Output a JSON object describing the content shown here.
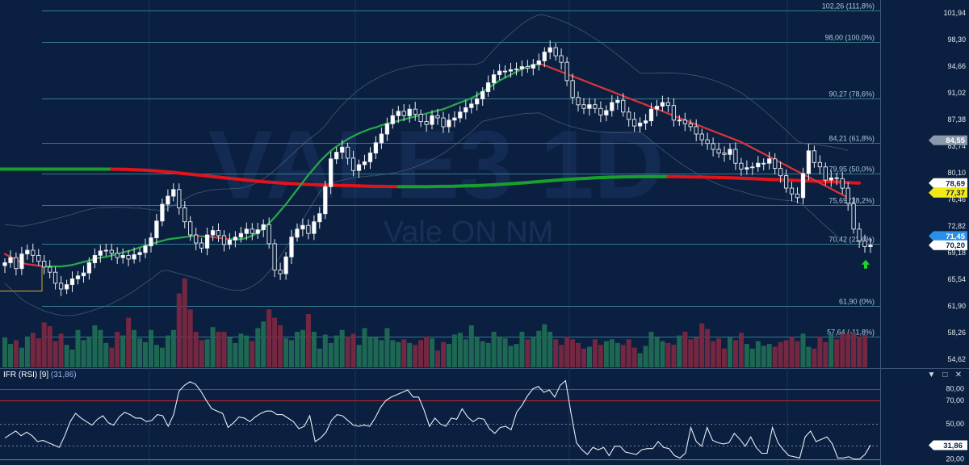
{
  "chart_data": [
    {
      "type": "candlestick",
      "title": "VALE3 1D",
      "subtitle": "Vale ON NM",
      "ylim": [
        53.5,
        103.5
      ],
      "y_ticks": [
        "101,94",
        "98,30",
        "94,66",
        "91,02",
        "87,38",
        "83,74",
        "80,10",
        "76,46",
        "72,82",
        "69,18",
        "65,54",
        "61,90",
        "58,26",
        "54,62"
      ],
      "y_tick_values": [
        101.94,
        98.3,
        94.66,
        91.02,
        87.38,
        83.74,
        80.1,
        76.46,
        72.82,
        69.18,
        65.54,
        61.9,
        58.26,
        54.62
      ],
      "fibonacci_levels": [
        {
          "label": "102,26 (111,8%)",
          "value": 102.26
        },
        {
          "label": "98,00 (100,0%)",
          "value": 98.0
        },
        {
          "label": "90,27 (78,6%)",
          "value": 90.27
        },
        {
          "label": "84,21 (61,8%)",
          "value": 84.21
        },
        {
          "label": "79,95 (50,0%)",
          "value": 79.95
        },
        {
          "label": "75,69 (38,2%)",
          "value": 75.69
        },
        {
          "label": "70,42 (23,6%)",
          "value": 70.42
        },
        {
          "label": "61,90 (0%)",
          "value": 61.9
        },
        {
          "label": "57,64 (-11,8%)",
          "value": 57.64
        }
      ],
      "price_badges": [
        {
          "label": "84,55",
          "value": 84.55,
          "color": "#8a98ab"
        },
        {
          "label": "78,69",
          "value": 78.69,
          "color": "#ffffff"
        },
        {
          "label": "77,37",
          "value": 77.37,
          "color": "#f2ea18"
        },
        {
          "label": "71,45",
          "value": 71.45,
          "color": "#2a8fe8"
        },
        {
          "label": "70,20",
          "value": 70.2,
          "color": "#ffffff"
        }
      ],
      "close_series": [
        67.8,
        68.5,
        67.0,
        69.0,
        69.5,
        68.8,
        68.0,
        67.2,
        66.5,
        65.0,
        64.2,
        64.8,
        65.6,
        66.0,
        66.4,
        67.8,
        68.8,
        69.4,
        69.5,
        69.1,
        68.5,
        68.8,
        68.3,
        68.9,
        69.2,
        70.1,
        71.2,
        73.5,
        75.8,
        76.9,
        77.8,
        75.3,
        73.4,
        71.6,
        70.5,
        69.8,
        71.6,
        72.2,
        71.5,
        70.3,
        70.9,
        71.3,
        71.8,
        72.4,
        71.8,
        72.3,
        73.0,
        70.4,
        66.8,
        66.3,
        68.6,
        71.3,
        72.4,
        72.9,
        71.8,
        73.4,
        74.5,
        78.2,
        82.0,
        82.9,
        83.6,
        82.1,
        80.4,
        81.2,
        81.6,
        82.8,
        84.2,
        85.4,
        86.8,
        87.9,
        88.5,
        87.9,
        88.8,
        88.1,
        87.1,
        86.7,
        87.9,
        87.6,
        86.4,
        87.3,
        87.6,
        88.4,
        89.0,
        89.5,
        90.2,
        91.2,
        92.4,
        93.5,
        94.0,
        94.0,
        94.2,
        94.3,
        94.6,
        94.4,
        94.9,
        95.4,
        96.6,
        97.2,
        96.1,
        95.2,
        92.7,
        90.4,
        89.4,
        88.9,
        89.4,
        88.9,
        88.0,
        88.6,
        89.7,
        90.0,
        88.4,
        87.4,
        86.5,
        86.9,
        87.2,
        88.8,
        89.2,
        89.7,
        89.3,
        87.3,
        87.3,
        86.8,
        86.4,
        85.4,
        84.6,
        84.1,
        83.3,
        82.8,
        82.6,
        83.3,
        81.4,
        80.6,
        80.8,
        80.9,
        81.4,
        81.4,
        82.0,
        80.7,
        79.7,
        78.0,
        77.2,
        76.7,
        80.0,
        83.1,
        81.5,
        80.9,
        79.1,
        79.4,
        79.3,
        78.0,
        75.9,
        72.4,
        70.8,
        70.0,
        70.2
      ],
      "sma_fast": [
        69.0,
        68.6,
        68.2,
        67.8,
        67.6,
        67.5,
        67.4,
        67.3,
        67.3,
        67.3,
        67.3,
        67.4,
        67.5,
        67.7,
        67.9,
        68.1,
        68.3,
        68.5,
        68.6,
        68.8,
        69.0,
        69.2,
        69.4,
        69.6,
        69.9,
        70.1,
        70.3,
        70.6,
        70.8,
        71.0,
        71.1,
        71.2,
        71.3,
        71.4,
        71.5,
        71.4,
        71.4,
        71.3,
        71.2,
        71.1,
        71.0,
        71.0,
        71.0,
        71.2,
        71.5,
        71.9,
        72.5,
        73.2,
        74.0,
        74.9,
        75.8,
        76.8,
        77.8,
        78.8,
        79.8,
        80.7,
        81.6,
        82.4,
        83.1,
        83.7,
        84.2,
        84.7,
        85.1,
        85.5,
        85.8,
        86.1,
        86.3,
        86.6,
        86.8,
        87.0,
        87.2,
        87.4,
        87.6,
        87.8,
        88.0,
        88.2,
        88.4,
        88.6,
        88.8,
        89.1,
        89.4,
        89.7,
        90.0,
        90.3,
        90.7,
        91.2,
        91.7,
        92.2,
        92.7,
        93.1,
        93.5,
        93.9,
        94.3,
        94.6,
        94.8,
        95.0,
        94.8,
        94.5,
        94.2,
        93.9,
        93.6,
        93.3,
        93.0,
        92.7,
        92.4,
        92.1,
        91.8,
        91.5,
        91.2,
        90.9,
        90.6,
        90.3,
        90.0,
        89.7,
        89.4,
        89.1,
        88.8,
        88.5,
        88.2,
        87.9,
        87.6,
        87.3,
        87.0,
        86.7,
        86.4,
        86.1,
        85.8,
        85.5,
        85.2,
        84.9,
        84.6,
        84.3,
        83.9,
        83.5,
        83.1,
        82.7,
        82.3,
        81.9,
        81.5,
        81.1,
        80.7,
        80.3,
        79.9,
        79.5,
        79.1,
        78.7,
        78.3,
        77.9,
        77.5,
        77.1,
        76.7
      ],
      "sma_slow": [
        80.6,
        80.6,
        80.6,
        80.6,
        80.6,
        80.6,
        80.6,
        80.6,
        80.6,
        80.6,
        80.6,
        80.6,
        80.6,
        80.6,
        80.6,
        80.6,
        80.6,
        80.6,
        80.6,
        80.6,
        80.59,
        80.57,
        80.55,
        80.52,
        80.49,
        80.45,
        80.4,
        80.34,
        80.28,
        80.21,
        80.14,
        80.06,
        79.98,
        79.9,
        79.82,
        79.74,
        79.66,
        79.58,
        79.5,
        79.42,
        79.34,
        79.26,
        79.18,
        79.1,
        79.02,
        78.95,
        78.88,
        78.82,
        78.76,
        78.71,
        78.66,
        78.62,
        78.58,
        78.54,
        78.51,
        78.48,
        78.45,
        78.42,
        78.4,
        78.38,
        78.36,
        78.34,
        78.32,
        78.3,
        78.28,
        78.26,
        78.24,
        78.23,
        78.22,
        78.21,
        78.2,
        78.2,
        78.2,
        78.2,
        78.2,
        78.2,
        78.21,
        78.22,
        78.23,
        78.24,
        78.26,
        78.28,
        78.3,
        78.32,
        78.35,
        78.38,
        78.42,
        78.46,
        78.5,
        78.55,
        78.6,
        78.65,
        78.71,
        78.77,
        78.83,
        78.89,
        78.95,
        79.01,
        79.07,
        79.13,
        79.18,
        79.23,
        79.28,
        79.32,
        79.36,
        79.4,
        79.44,
        79.47,
        79.5,
        79.52,
        79.54,
        79.55,
        79.56,
        79.57,
        79.58,
        79.58,
        79.58,
        79.58,
        79.58,
        79.57,
        79.56,
        79.55,
        79.54,
        79.53,
        79.51,
        79.49,
        79.47,
        79.45,
        79.43,
        79.41,
        79.38,
        79.35,
        79.32,
        79.29,
        79.26,
        79.23,
        79.2,
        79.17,
        79.14,
        79.11,
        79.08,
        79.05,
        79.02,
        78.99,
        78.96,
        78.93,
        78.9,
        78.87,
        78.84,
        78.8,
        78.76,
        78.72,
        78.69
      ],
      "volume": [
        0.32,
        0.25,
        0.29,
        0.21,
        0.33,
        0.37,
        0.31,
        0.48,
        0.44,
        0.28,
        0.36,
        0.24,
        0.19,
        0.4,
        0.29,
        0.33,
        0.45,
        0.4,
        0.26,
        0.21,
        0.38,
        0.34,
        0.53,
        0.4,
        0.31,
        0.27,
        0.4,
        0.24,
        0.21,
        0.34,
        0.4,
        0.79,
        0.95,
        0.62,
        0.38,
        0.29,
        0.3,
        0.43,
        0.38,
        0.38,
        0.32,
        0.26,
        0.36,
        0.34,
        0.28,
        0.42,
        0.49,
        0.62,
        0.53,
        0.45,
        0.31,
        0.29,
        0.38,
        0.4,
        0.57,
        0.38,
        0.2,
        0.35,
        0.26,
        0.34,
        0.4,
        0.33,
        0.36,
        0.24,
        0.42,
        0.33,
        0.32,
        0.29,
        0.42,
        0.29,
        0.27,
        0.3,
        0.26,
        0.24,
        0.29,
        0.33,
        0.31,
        0.18,
        0.27,
        0.25,
        0.35,
        0.37,
        0.3,
        0.45,
        0.33,
        0.28,
        0.26,
        0.38,
        0.33,
        0.31,
        0.23,
        0.25,
        0.38,
        0.3,
        0.33,
        0.39,
        0.46,
        0.38,
        0.3,
        0.24,
        0.33,
        0.3,
        0.26,
        0.2,
        0.22,
        0.3,
        0.24,
        0.28,
        0.3,
        0.26,
        0.24,
        0.3,
        0.21,
        0.15,
        0.23,
        0.38,
        0.32,
        0.28,
        0.26,
        0.24,
        0.34,
        0.38,
        0.3,
        0.32,
        0.47,
        0.41,
        0.28,
        0.31,
        0.2,
        0.33,
        0.29,
        0.37,
        0.25,
        0.2,
        0.28,
        0.23,
        0.25,
        0.22,
        0.27,
        0.29,
        0.33,
        0.28,
        0.36,
        0.22,
        0.2,
        0.33,
        0.27,
        0.36,
        0.3,
        0.36,
        0.36,
        0.37,
        0.33,
        0.35
      ]
    },
    {
      "type": "line",
      "title": "IFR (RSI) [9]",
      "current_value_label": "(31,86)",
      "ylim": [
        15,
        88
      ],
      "y_ticks": [
        "80,00",
        "70,00",
        "50,00",
        "20,00"
      ],
      "y_tick_values": [
        80,
        70,
        50,
        20
      ],
      "current_badge": "31,86",
      "current_badge_value": 31.86,
      "values": [
        38,
        41,
        44,
        40,
        43,
        40,
        35,
        36,
        34,
        32,
        30,
        40,
        52,
        59,
        55,
        52,
        49,
        54,
        57,
        51,
        49,
        56,
        60,
        58,
        55,
        55,
        52,
        53,
        58,
        57,
        48,
        58,
        78,
        83,
        86,
        84,
        78,
        70,
        63,
        61,
        59,
        47,
        51,
        56,
        55,
        52,
        56,
        59,
        61,
        61,
        58,
        58,
        55,
        52,
        46,
        48,
        57,
        35,
        38,
        43,
        53,
        58,
        57,
        53,
        49,
        48,
        49,
        48,
        55,
        64,
        70,
        73,
        75,
        77,
        79,
        73,
        73,
        62,
        48,
        55,
        50,
        48,
        55,
        54,
        63,
        56,
        52,
        55,
        54,
        46,
        42,
        47,
        48,
        45,
        60,
        66,
        74,
        80,
        82,
        77,
        79,
        73,
        83,
        87,
        59,
        34,
        28,
        24,
        30,
        28,
        30,
        23,
        31,
        31,
        26,
        25,
        24,
        28,
        29,
        29,
        35,
        30,
        29,
        23,
        21,
        25,
        47,
        35,
        31,
        47,
        36,
        34,
        33,
        34,
        42,
        37,
        31,
        39,
        30,
        25,
        25,
        47,
        34,
        28,
        23,
        22,
        21,
        39,
        44,
        35,
        37,
        39,
        33,
        21,
        21,
        22,
        20,
        20,
        24,
        32
      ]
    }
  ],
  "pane": {
    "rsi_title": "IFR (RSI) [9]",
    "rsi_value": "(31,86)",
    "btn_min": "▼",
    "btn_max": "□",
    "btn_close": "✕"
  }
}
